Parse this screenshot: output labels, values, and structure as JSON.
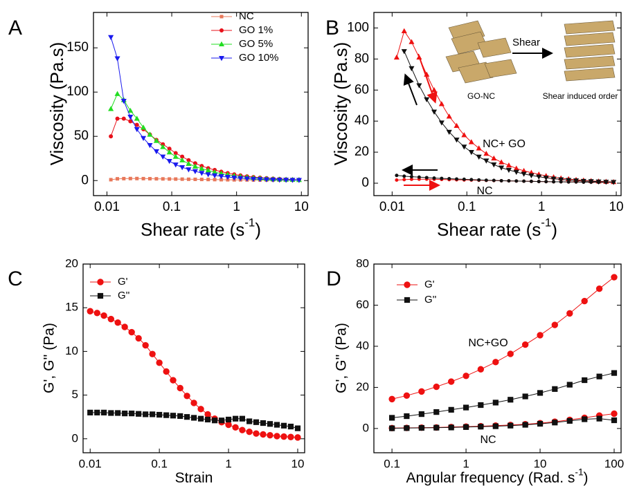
{
  "chart_data": [
    {
      "type": "line",
      "panel": "A",
      "ylabel": "Viscosity (Pa.s)",
      "xlabel": [
        "Shear rate (s",
        "-1",
        ")"
      ],
      "xscale": "log",
      "xlim": [
        0.0062,
        12.7
      ],
      "ylim": [
        -17,
        190
      ],
      "xticks": [
        0.01,
        0.1,
        1,
        10
      ],
      "yticks": [
        0,
        50,
        100,
        150
      ],
      "legend": "upper right",
      "x": [
        0.0115,
        0.0145,
        0.0182,
        0.023,
        0.029,
        0.0365,
        0.046,
        0.058,
        0.073,
        0.092,
        0.115,
        0.145,
        0.182,
        0.23,
        0.29,
        0.365,
        0.46,
        0.58,
        0.73,
        0.92,
        1.15,
        1.45,
        1.82,
        2.3,
        2.9,
        3.65,
        4.6,
        5.8,
        7.3,
        9.2
      ],
      "series": [
        {
          "name": "NC",
          "color": "#e8785a",
          "marker": "square",
          "values": [
            1,
            2,
            2.2,
            2.3,
            2.3,
            2.2,
            2.1,
            2,
            1.9,
            1.8,
            1.7,
            1.6,
            1.5,
            1.4,
            1.3,
            1.2,
            1.1,
            1,
            0.9,
            0.8,
            0.8,
            0.7,
            0.6,
            0.6,
            0.5,
            0.5,
            0.5,
            0.4,
            0.4,
            0.4
          ]
        },
        {
          "name": "GO 1%",
          "color": "#e8101a",
          "marker": "circle",
          "values": [
            50,
            70,
            70,
            67,
            63,
            58,
            52,
            46,
            41,
            36,
            31,
            27,
            23,
            19.5,
            16.5,
            14,
            12,
            10,
            8.5,
            7,
            5.8,
            4.8,
            4,
            3.3,
            2.7,
            2.2,
            1.8,
            1.5,
            1.2,
            1
          ]
        },
        {
          "name": "GO 5%",
          "color": "#22dd22",
          "marker": "triangle-up",
          "values": [
            81,
            98,
            91,
            79,
            70,
            60,
            52,
            45,
            38,
            32,
            27,
            23,
            19,
            16,
            13.5,
            11.5,
            9.5,
            8,
            6.7,
            5.5,
            4.6,
            3.8,
            3.1,
            2.6,
            2.1,
            1.7,
            1.4,
            1.2,
            1,
            0.8
          ]
        },
        {
          "name": "GO 10%",
          "color": "#1a1aee",
          "marker": "triangle-down",
          "values": [
            162,
            138,
            90,
            72,
            58,
            48,
            40,
            33,
            27,
            22,
            18,
            15,
            12.5,
            10.5,
            8.5,
            7,
            5.8,
            4.8,
            4,
            3.3,
            2.7,
            2.2,
            1.8,
            1.5,
            1.2,
            1,
            0.8,
            0.7,
            0.6,
            0.5
          ]
        }
      ]
    },
    {
      "type": "line",
      "panel": "B",
      "ylabel": "Viscosity (Pa.s)",
      "xlabel": [
        "Shear rate (s",
        "-1",
        ")"
      ],
      "xscale": "log",
      "xlim": [
        0.0057,
        11.6
      ],
      "ylim": [
        -8,
        110
      ],
      "xticks": [
        0.01,
        0.1,
        1,
        10
      ],
      "yticks": [
        0,
        20,
        40,
        60,
        80,
        100
      ],
      "annotations": [
        "Shear",
        "GO-NC",
        "Shear induced order",
        "NC+ GO",
        "NC"
      ],
      "x": [
        0.0115,
        0.0145,
        0.0182,
        0.023,
        0.029,
        0.0365,
        0.046,
        0.058,
        0.073,
        0.092,
        0.115,
        0.145,
        0.182,
        0.23,
        0.29,
        0.365,
        0.46,
        0.58,
        0.73,
        0.92,
        1.15,
        1.45,
        1.82,
        2.3,
        2.9,
        3.65,
        4.6,
        5.8,
        7.3,
        9.2
      ],
      "series": [
        {
          "color": "#ee1111",
          "marker": "triangle-up",
          "values": [
            81,
            98,
            91,
            81,
            70,
            60,
            51,
            43,
            37,
            31,
            26.5,
            22.5,
            19,
            16,
            13.5,
            11.5,
            9.5,
            8,
            6.8,
            5.7,
            4.7,
            3.9,
            3.2,
            2.7,
            2.2,
            1.8,
            1.5,
            1.2,
            1,
            0.8
          ]
        },
        {
          "color": "#111111",
          "marker": "triangle-down",
          "values": [
            null,
            85,
            74,
            63,
            54,
            46,
            39,
            33,
            28,
            23.5,
            20,
            17,
            14.5,
            12,
            10,
            8.5,
            7.2,
            6,
            5,
            4.2,
            3.5,
            2.9,
            2.4,
            2,
            1.7,
            1.4,
            1.2,
            1,
            0.8,
            0.7
          ]
        },
        {
          "color": "#ee1111",
          "marker": "circle-small",
          "values": [
            2,
            2.3,
            2.5,
            2.6,
            2.6,
            2.5,
            2.4,
            2.3,
            2.2,
            2.1,
            2,
            1.9,
            1.8,
            1.7,
            1.6,
            1.5,
            1.4,
            1.3,
            1.2,
            1.1,
            1,
            0.9,
            0.9,
            0.8,
            0.8,
            0.7,
            0.7,
            0.6,
            0.6,
            0.6
          ]
        },
        {
          "color": "#111111",
          "marker": "circle-small",
          "values": [
            5,
            4.5,
            4.2,
            3.9,
            3.6,
            3.3,
            3.1,
            2.9,
            2.7,
            2.5,
            2.3,
            2.1,
            1.9,
            1.8,
            1.6,
            1.5,
            1.4,
            1.3,
            1.2,
            1.1,
            1,
            0.9,
            0.9,
            0.8,
            0.8,
            0.7,
            0.7,
            0.6,
            0.6,
            0.6
          ]
        }
      ]
    },
    {
      "type": "line",
      "panel": "C",
      "ylabel": "G', G'' (Pa)",
      "xlabel": [
        "Strain"
      ],
      "xscale": "log",
      "xlim": [
        0.0079,
        12.6
      ],
      "ylim": [
        -1.6,
        20
      ],
      "xticks": [
        0.01,
        0.1,
        1,
        10
      ],
      "yticks": [
        0,
        5,
        10,
        15,
        20
      ],
      "legend": "upper left",
      "x": [
        0.01,
        0.0126,
        0.0158,
        0.02,
        0.0251,
        0.0316,
        0.0398,
        0.0501,
        0.0631,
        0.0794,
        0.1,
        0.126,
        0.158,
        0.2,
        0.251,
        0.316,
        0.398,
        0.501,
        0.631,
        0.794,
        1,
        1.26,
        1.58,
        2,
        2.51,
        3.16,
        3.98,
        5.01,
        6.31,
        7.94,
        10
      ],
      "series": [
        {
          "name": "G'",
          "color": "#ee1111",
          "marker": "circle-big",
          "values": [
            14.6,
            14.4,
            14.1,
            13.7,
            13.3,
            12.8,
            12.2,
            11.5,
            10.7,
            9.7,
            8.7,
            7.7,
            6.7,
            5.8,
            4.9,
            4.1,
            3.4,
            2.8,
            2.3,
            1.9,
            1.6,
            1.3,
            1,
            0.8,
            0.6,
            0.5,
            0.4,
            0.3,
            0.25,
            0.2,
            0.15
          ]
        },
        {
          "name": "G''",
          "color": "#111111",
          "marker": "square-big",
          "values": [
            3,
            3,
            3,
            2.95,
            2.95,
            2.9,
            2.9,
            2.85,
            2.8,
            2.8,
            2.75,
            2.7,
            2.65,
            2.6,
            2.5,
            2.4,
            2.3,
            2.2,
            2.1,
            2.1,
            2.2,
            2.3,
            2.3,
            2,
            1.9,
            1.8,
            1.7,
            1.6,
            1.5,
            1.4,
            1.2
          ]
        }
      ]
    },
    {
      "type": "line",
      "panel": "D",
      "ylabel": "G', G'' (Pa)",
      "xlabel": [
        "Angular frequency (Rad. s",
        "-1",
        ")"
      ],
      "xscale": "log",
      "xlim": [
        0.057,
        124
      ],
      "ylim": [
        -11.8,
        80
      ],
      "xticks": [
        0.1,
        1,
        10,
        100
      ],
      "yticks": [
        0,
        20,
        40,
        60,
        80
      ],
      "legend": "upper left",
      "annotations": [
        "NC+GO",
        "NC"
      ],
      "x": [
        0.1,
        0.158,
        0.251,
        0.398,
        0.631,
        1,
        1.58,
        2.51,
        3.98,
        6.31,
        10,
        15.8,
        25.1,
        39.8,
        63.1,
        100
      ],
      "series": [
        {
          "name": "G'",
          "color": "#ee1111",
          "marker": "circle-big",
          "values": [
            14.3,
            16,
            18,
            20.3,
            22.8,
            25.6,
            28.8,
            32.3,
            36.3,
            40.8,
            45.4,
            50.4,
            56,
            62,
            68,
            73.6
          ]
        },
        {
          "name": "G''",
          "color": "#111111",
          "marker": "square-big",
          "values": [
            5.2,
            6,
            7,
            8,
            9.1,
            10.2,
            11.4,
            12.6,
            14,
            15.6,
            17.3,
            19.2,
            21.3,
            23.5,
            25.3,
            27
          ]
        },
        {
          "color": "#ee1111",
          "marker": "circle-big",
          "values": [
            0.2,
            0.3,
            0.4,
            0.5,
            0.7,
            0.9,
            1.1,
            1.4,
            1.7,
            2.1,
            2.6,
            3.3,
            4.2,
            5.2,
            6.3,
            7.2
          ]
        },
        {
          "color": "#111111",
          "marker": "square-big",
          "values": [
            0.1,
            0.2,
            0.3,
            0.4,
            0.5,
            0.7,
            0.9,
            1.1,
            1.4,
            1.8,
            2.3,
            2.9,
            3.7,
            4.5,
            4.8,
            4
          ]
        }
      ]
    }
  ]
}
